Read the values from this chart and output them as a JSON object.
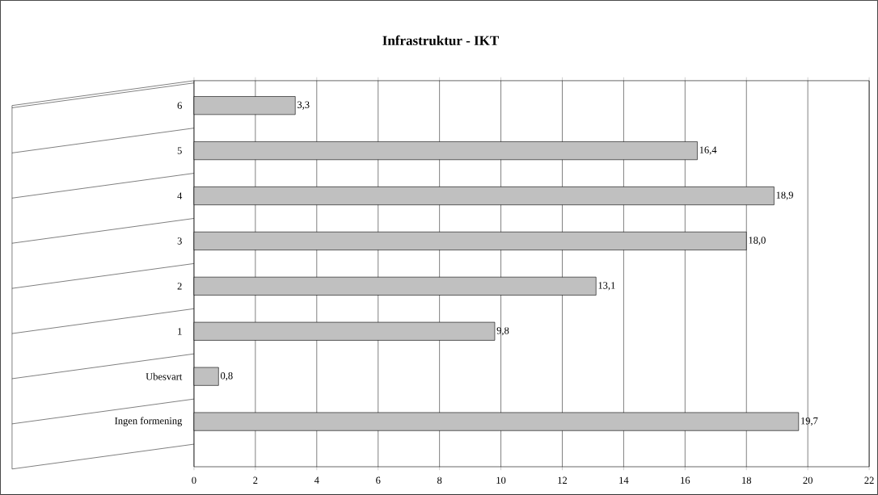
{
  "chart_data": {
    "type": "bar",
    "orientation": "horizontal",
    "title": "Infrastruktur - IKT",
    "categories": [
      "6",
      "5",
      "4",
      "3",
      "2",
      "1",
      "Ubesvart",
      "Ingen formening"
    ],
    "values": [
      3.3,
      16.4,
      18.9,
      18.0,
      13.1,
      9.8,
      0.8,
      19.7
    ],
    "value_labels": [
      "3,3",
      "16,4",
      "18,9",
      "18,0",
      "13,1",
      "9,8",
      "0,8",
      "19,7"
    ],
    "color": "#c0c0c0",
    "xlim": [
      0,
      22
    ],
    "xticks": [
      0,
      2,
      4,
      6,
      8,
      10,
      12,
      14,
      16,
      18,
      20,
      22
    ],
    "grid": "x"
  }
}
